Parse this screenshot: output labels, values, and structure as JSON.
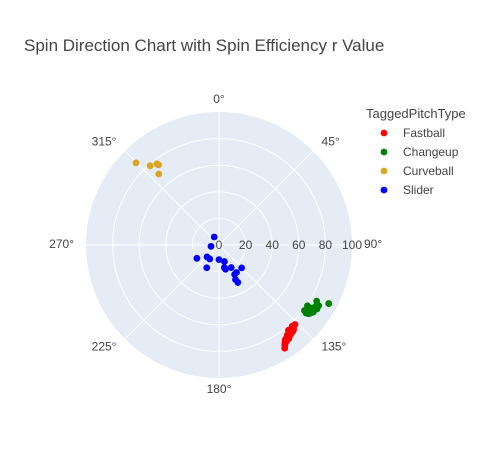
{
  "chart_data": {
    "type": "scatter",
    "projection": "polar",
    "title": "Spin Direction Chart with Spin Efficiency r Value",
    "angular_axis": {
      "rotation": "clockwise",
      "zero_at": "top",
      "tick_labels": [
        "0°",
        "45°",
        "90°",
        "135°",
        "180°",
        "225°",
        "270°",
        "315°"
      ]
    },
    "radial_axis": {
      "range": [
        0,
        100
      ],
      "tick_labels": [
        "0",
        "20",
        "40",
        "60",
        "80",
        "100"
      ]
    },
    "legend": {
      "title": "TaggedPitchType",
      "placement": "top-right"
    },
    "series": [
      {
        "name": "Fastball",
        "color": "#ff0000",
        "points": [
          {
            "theta": 147.5,
            "r": 92.0
          },
          {
            "theta": 146.7,
            "r": 90.1
          },
          {
            "theta": 145.9,
            "r": 88.5
          },
          {
            "theta": 145.4,
            "r": 87.8
          },
          {
            "theta": 144.2,
            "r": 86.6
          },
          {
            "theta": 143.6,
            "r": 85.9
          },
          {
            "theta": 142.7,
            "r": 84.9
          },
          {
            "theta": 142.3,
            "r": 85.3
          },
          {
            "theta": 141.2,
            "r": 85.0
          },
          {
            "theta": 140.3,
            "r": 83.9
          },
          {
            "theta": 139.6,
            "r": 83.9
          },
          {
            "theta": 139.0,
            "r": 84.1
          },
          {
            "theta": 137.5,
            "r": 83.2
          },
          {
            "theta": 146.3,
            "r": 89.6
          },
          {
            "theta": 145.0,
            "r": 86.9
          },
          {
            "theta": 143.5,
            "r": 86.8
          },
          {
            "theta": 142.0,
            "r": 86.5
          },
          {
            "theta": 141.0,
            "r": 86.0
          },
          {
            "theta": 140.5,
            "r": 85.4
          },
          {
            "theta": 139.6,
            "r": 85.5
          },
          {
            "theta": 138.6,
            "r": 84.8
          },
          {
            "theta": 144.8,
            "r": 88.3
          },
          {
            "theta": 143.3,
            "r": 87.8
          },
          {
            "theta": 140.8,
            "r": 82.6
          },
          {
            "theta": 138.0,
            "r": 82.2
          },
          {
            "theta": 136.3,
            "r": 82.7
          }
        ]
      },
      {
        "name": "Changeup",
        "color": "#008000",
        "points": [
          {
            "theta": 118.1,
            "r": 93.5
          },
          {
            "theta": 123.1,
            "r": 88.0
          },
          {
            "theta": 121.8,
            "r": 86.3
          },
          {
            "theta": 119.9,
            "r": 84.7
          },
          {
            "theta": 124.5,
            "r": 80.7
          },
          {
            "theta": 127.5,
            "r": 81.0
          },
          {
            "theta": 126.4,
            "r": 83.7
          },
          {
            "theta": 125.3,
            "r": 83.1
          },
          {
            "theta": 124.3,
            "r": 84.2
          },
          {
            "theta": 125.4,
            "r": 85.3
          },
          {
            "theta": 124.5,
            "r": 86.6
          },
          {
            "theta": 127.5,
            "r": 84.9
          },
          {
            "theta": 126.6,
            "r": 85.8
          },
          {
            "theta": 128.0,
            "r": 83.1
          },
          {
            "theta": 123.4,
            "r": 85.6
          },
          {
            "theta": 121.3,
            "r": 87.7
          },
          {
            "theta": 127.1,
            "r": 82.6
          },
          {
            "theta": 125.4,
            "r": 87.0
          },
          {
            "theta": 126.3,
            "r": 84.3
          }
        ]
      },
      {
        "name": "Curveball",
        "color": "#daa520",
        "points": [
          {
            "theta": 314.7,
            "r": 87.8
          },
          {
            "theta": 319.0,
            "r": 78.9
          },
          {
            "theta": 322.6,
            "r": 76.9
          },
          {
            "theta": 323.0,
            "r": 75.5
          },
          {
            "theta": 319.7,
            "r": 70.0
          }
        ]
      },
      {
        "name": "Slider",
        "color": "#0000ff",
        "points": [
          {
            "theta": 329.0,
            "r": 7.0
          },
          {
            "theta": 260.5,
            "r": 6.1
          },
          {
            "theta": 239.0,
            "r": 19.4
          },
          {
            "theta": 213.7,
            "r": 12.6
          },
          {
            "theta": 225.0,
            "r": 12.7
          },
          {
            "theta": 180.0,
            "r": 11.0
          },
          {
            "theta": 162.1,
            "r": 13.1
          },
          {
            "theta": 166.8,
            "r": 17.5
          },
          {
            "theta": 164.9,
            "r": 18.9
          },
          {
            "theta": 151.6,
            "r": 19.3
          },
          {
            "theta": 147.5,
            "r": 24.5
          },
          {
            "theta": 135.3,
            "r": 24.2
          },
          {
            "theta": 152.0,
            "r": 25.0
          },
          {
            "theta": 154.5,
            "r": 28.8
          },
          {
            "theta": 153.3,
            "r": 31.5
          },
          {
            "theta": 208.3,
            "r": 19.4
          }
        ]
      }
    ]
  }
}
